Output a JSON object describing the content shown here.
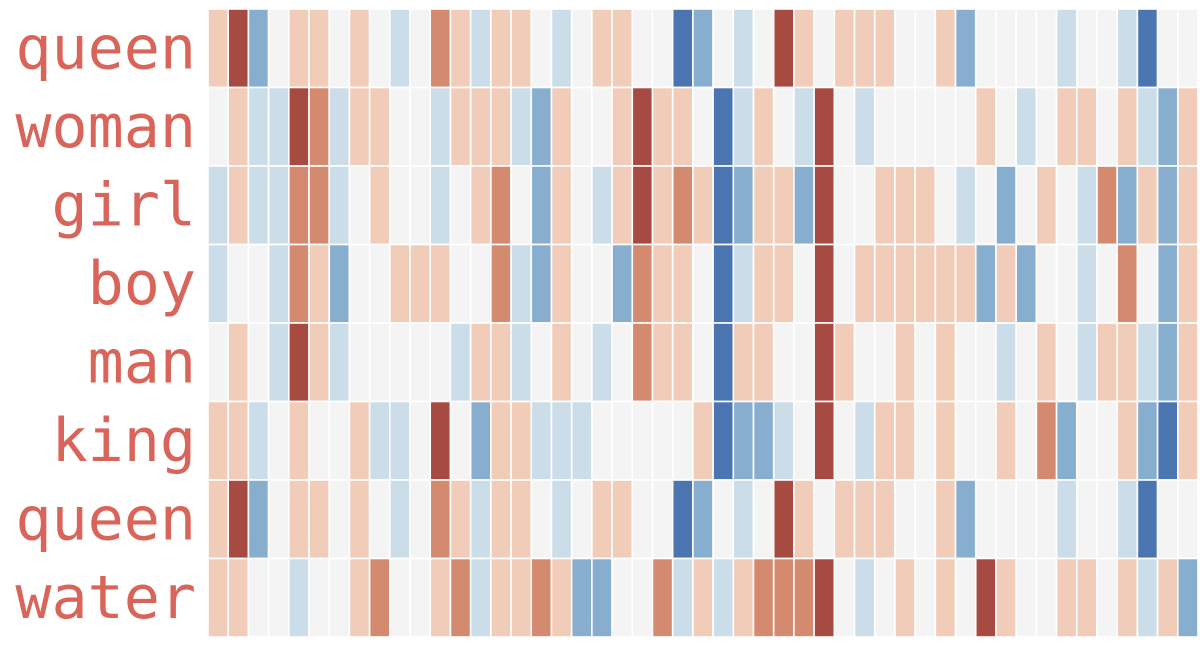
{
  "chart_data": {
    "type": "heatmap",
    "title": "",
    "xlabel": "",
    "ylabel": "",
    "rows": [
      "queen",
      "woman",
      "girl",
      "boy",
      "man",
      "king",
      "queen",
      "water"
    ],
    "row_label_color": "#d9645a",
    "colormap": "RdBu_r",
    "value_range": [
      -3,
      3
    ],
    "palette": {
      "-3": "#4a75b1",
      "-2": "#87aecf",
      "-1": "#cbdde9",
      "0": "#f4f4f4",
      "1": "#f1cdb9",
      "2": "#d38a6e",
      "3": "#a64a42"
    },
    "grid_lines": true,
    "grid_color": "#ffffff",
    "x_tick_labels": false,
    "colorbar": false,
    "values": [
      [
        1,
        3,
        -2,
        0,
        1,
        1,
        0,
        1,
        0,
        -1,
        0,
        2,
        1,
        -1,
        1,
        1,
        0,
        -1,
        0,
        1,
        1,
        0,
        0,
        -3,
        -2,
        0,
        -1,
        0,
        3,
        1,
        0,
        1,
        1,
        1,
        0,
        0,
        1,
        -2,
        0,
        0,
        0,
        0,
        -1,
        0,
        0,
        -1,
        -3,
        0,
        0
      ],
      [
        0,
        1,
        -1,
        -1,
        3,
        2,
        -1,
        1,
        1,
        0,
        0,
        -1,
        1,
        1,
        1,
        -1,
        -2,
        1,
        0,
        0,
        1,
        3,
        1,
        1,
        0,
        -3,
        -1,
        1,
        0,
        -1,
        3,
        0,
        -1,
        0,
        0,
        0,
        0,
        0,
        1,
        0,
        -1,
        0,
        1,
        1,
        0,
        1,
        -1,
        -2,
        1
      ],
      [
        -1,
        1,
        -1,
        -1,
        2,
        2,
        -1,
        0,
        1,
        0,
        0,
        -1,
        0,
        1,
        2,
        0,
        -2,
        1,
        0,
        -1,
        1,
        3,
        1,
        2,
        1,
        -3,
        -2,
        1,
        1,
        -2,
        3,
        0,
        0,
        1,
        1,
        1,
        0,
        -1,
        0,
        -2,
        0,
        1,
        0,
        -1,
        2,
        -2,
        1,
        -2,
        1
      ],
      [
        -1,
        0,
        0,
        -1,
        2,
        1,
        -2,
        0,
        0,
        1,
        1,
        1,
        0,
        0,
        2,
        -1,
        -2,
        1,
        0,
        0,
        -2,
        2,
        1,
        1,
        0,
        -3,
        -1,
        1,
        1,
        0,
        3,
        0,
        1,
        1,
        1,
        1,
        1,
        1,
        -2,
        1,
        -2,
        0,
        0,
        -1,
        0,
        2,
        0,
        -2,
        1
      ],
      [
        0,
        1,
        0,
        -1,
        3,
        1,
        -1,
        0,
        0,
        0,
        0,
        0,
        -1,
        1,
        1,
        -1,
        0,
        1,
        0,
        -1,
        0,
        2,
        1,
        1,
        0,
        -3,
        1,
        1,
        0,
        0,
        3,
        1,
        0,
        0,
        1,
        0,
        1,
        0,
        0,
        -1,
        0,
        1,
        0,
        -1,
        1,
        1,
        -1,
        -2,
        1
      ],
      [
        1,
        1,
        -1,
        0,
        1,
        0,
        0,
        1,
        -1,
        -1,
        0,
        3,
        0,
        -2,
        1,
        1,
        -1,
        -1,
        -1,
        0,
        0,
        0,
        0,
        0,
        1,
        -3,
        -2,
        -2,
        -1,
        0,
        3,
        0,
        -1,
        1,
        1,
        0,
        1,
        0,
        0,
        1,
        0,
        2,
        -2,
        0,
        0,
        1,
        -2,
        -3,
        1
      ],
      [
        1,
        3,
        -2,
        0,
        1,
        1,
        0,
        1,
        0,
        -1,
        0,
        2,
        1,
        -1,
        1,
        1,
        0,
        -1,
        0,
        1,
        1,
        0,
        0,
        -3,
        -2,
        0,
        -1,
        0,
        3,
        1,
        0,
        1,
        1,
        1,
        0,
        0,
        1,
        -2,
        0,
        0,
        0,
        0,
        -1,
        0,
        0,
        -1,
        -3,
        0,
        0
      ],
      [
        1,
        1,
        0,
        0,
        -1,
        0,
        0,
        1,
        2,
        0,
        0,
        1,
        2,
        -1,
        1,
        1,
        2,
        1,
        -2,
        -2,
        0,
        0,
        2,
        -1,
        1,
        -1,
        1,
        2,
        2,
        2,
        3,
        0,
        -1,
        0,
        1,
        0,
        1,
        0,
        3,
        1,
        0,
        0,
        1,
        1,
        0,
        1,
        -1,
        1,
        -2
      ]
    ]
  }
}
